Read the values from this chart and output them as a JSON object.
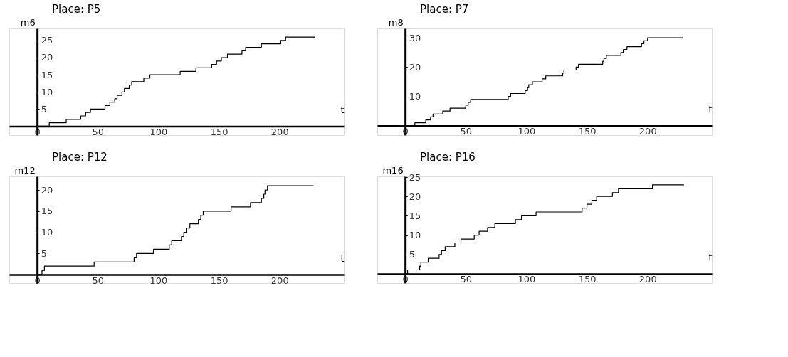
{
  "chart_data": [
    {
      "type": "step",
      "title": "Place: P5",
      "xlabel": "t",
      "ylabel": "m6",
      "xlim": [
        -23,
        253
      ],
      "ylim": [
        -2.6,
        28.5
      ],
      "xticks": [
        0,
        50,
        100,
        150,
        200
      ],
      "yticks": [
        5,
        10,
        15,
        20,
        25
      ],
      "x": [
        0,
        10,
        24,
        36,
        40,
        44,
        56,
        60,
        64,
        66,
        70,
        72,
        76,
        78,
        88,
        93,
        118,
        131,
        144,
        148,
        152,
        157,
        169,
        172,
        185,
        201,
        205,
        229
      ],
      "series": [
        {
          "color": "#000000",
          "values": [
            0,
            1,
            2,
            3,
            4,
            5,
            6,
            7,
            8,
            9,
            10,
            11,
            12,
            13,
            14,
            15,
            16,
            17,
            18,
            19,
            20,
            21,
            22,
            23,
            24,
            25,
            26,
            26
          ]
        }
      ]
    },
    {
      "type": "step",
      "title": "Place: P7",
      "xlabel": "t",
      "ylabel": "m8",
      "xlim": [
        -23,
        253
      ],
      "ylim": [
        -3.2,
        33.2
      ],
      "xticks": [
        0,
        50,
        100,
        150,
        200
      ],
      "yticks": [
        10,
        20,
        30
      ],
      "x": [
        0,
        8,
        17,
        21,
        23,
        31,
        37,
        50,
        52,
        54,
        85,
        87,
        99,
        101,
        102,
        105,
        113,
        116,
        130,
        131,
        141,
        143,
        163,
        164,
        166,
        178,
        180,
        183,
        195,
        197,
        200,
        229
      ],
      "series": [
        {
          "color": "#000000",
          "values": [
            0,
            1,
            2,
            3,
            4,
            5,
            6,
            7,
            8,
            9,
            10,
            11,
            12,
            13,
            14,
            15,
            16,
            17,
            18,
            19,
            20,
            21,
            22,
            23,
            24,
            25,
            26,
            27,
            28,
            29,
            30,
            30
          ]
        }
      ]
    },
    {
      "type": "step",
      "title": "Place: P12",
      "xlabel": "t",
      "ylabel": "m12",
      "xlim": [
        -23,
        253
      ],
      "ylim": [
        -2.0,
        23.2
      ],
      "xticks": [
        0,
        50,
        100,
        150,
        200
      ],
      "yticks": [
        5,
        10,
        15,
        20
      ],
      "x": [
        0,
        4,
        6,
        47,
        80,
        82,
        96,
        109,
        111,
        119,
        121,
        123,
        126,
        133,
        135,
        137,
        160,
        176,
        185,
        187,
        188,
        190,
        228
      ],
      "series": [
        {
          "color": "#000000",
          "values": [
            0,
            1,
            2,
            3,
            4,
            5,
            6,
            7,
            8,
            9,
            10,
            11,
            12,
            13,
            14,
            15,
            16,
            17,
            18,
            19,
            20,
            21,
            21
          ]
        }
      ]
    },
    {
      "type": "step",
      "title": "Place: P16",
      "xlabel": "t",
      "ylabel": "m16",
      "xlim": [
        -23,
        253
      ],
      "ylim": [
        -2.4,
        25.2
      ],
      "xticks": [
        0,
        50,
        100,
        150,
        200
      ],
      "yticks": [
        5,
        10,
        15,
        20,
        25
      ],
      "x": [
        0,
        2,
        12,
        13,
        19,
        28,
        30,
        33,
        41,
        46,
        57,
        61,
        68,
        74,
        91,
        96,
        108,
        146,
        150,
        154,
        158,
        171,
        176,
        204,
        230
      ],
      "series": [
        {
          "color": "#000000",
          "values": [
            0,
            1,
            2,
            3,
            4,
            5,
            6,
            7,
            8,
            9,
            10,
            11,
            12,
            13,
            14,
            15,
            16,
            17,
            18,
            19,
            20,
            21,
            22,
            23,
            23
          ]
        }
      ]
    }
  ]
}
